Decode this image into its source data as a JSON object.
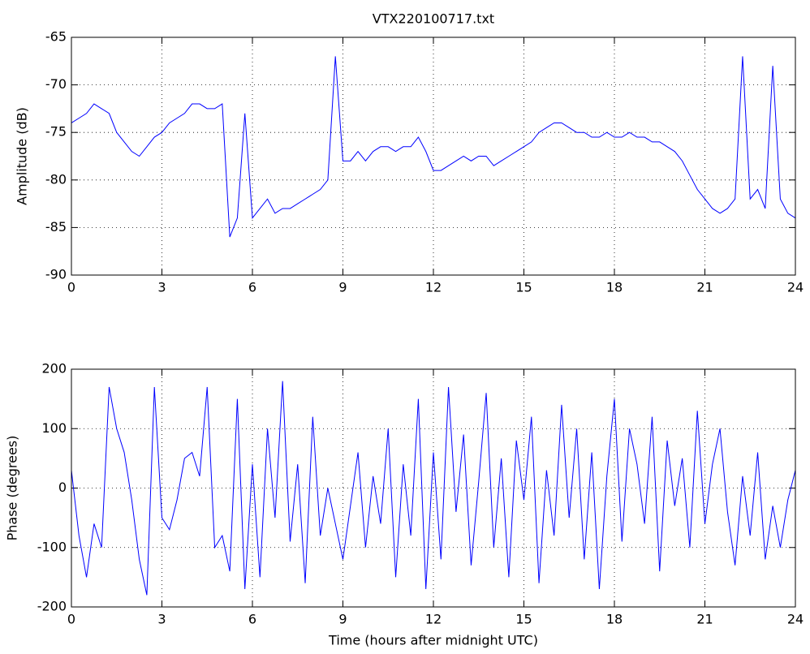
{
  "chart_data": [
    {
      "type": "line",
      "title": "VTX220100717.txt",
      "ylabel": "Amplitude (dB)",
      "x": [
        0,
        0.25,
        0.5,
        0.75,
        1,
        1.25,
        1.5,
        1.75,
        2,
        2.25,
        2.5,
        2.75,
        3,
        3.25,
        3.5,
        3.75,
        4,
        4.25,
        4.5,
        4.75,
        5,
        5.25,
        5.5,
        5.75,
        6,
        6.25,
        6.5,
        6.75,
        7,
        7.25,
        7.5,
        7.75,
        8,
        8.25,
        8.5,
        8.75,
        9,
        9.25,
        9.5,
        9.75,
        10,
        10.25,
        10.5,
        10.75,
        11,
        11.25,
        11.5,
        11.75,
        12,
        12.25,
        12.5,
        12.75,
        13,
        13.25,
        13.5,
        13.75,
        14,
        14.25,
        14.5,
        14.75,
        15,
        15.25,
        15.5,
        15.75,
        16,
        16.25,
        16.5,
        16.75,
        17,
        17.25,
        17.5,
        17.75,
        18,
        18.25,
        18.5,
        18.75,
        19,
        19.25,
        19.5,
        19.75,
        20,
        20.25,
        20.5,
        20.75,
        21,
        21.25,
        21.5,
        21.75,
        22,
        22.25,
        22.5,
        22.75,
        23,
        23.25,
        23.5,
        23.75,
        24
      ],
      "series": [
        {
          "color": "#0000ff",
          "values": [
            -74,
            -73.5,
            -73,
            -72,
            -72.5,
            -73,
            -75,
            -76,
            -77,
            -77.5,
            -76.5,
            -75.5,
            -75,
            -74,
            -73.5,
            -73,
            -72,
            -72,
            -72.5,
            -72.5,
            -72,
            -86,
            -84,
            -73,
            -84,
            -83,
            -82,
            -83.5,
            -83,
            -83,
            -82.5,
            -82,
            -81.5,
            -81,
            -80,
            -67,
            -78,
            -78,
            -77,
            -78,
            -77,
            -76.5,
            -76.5,
            -77,
            -76.5,
            -76.5,
            -75.5,
            -77,
            -79,
            -79,
            -78.5,
            -78,
            -77.5,
            -78,
            -77.5,
            -77.5,
            -78.5,
            -78,
            -77.5,
            -77,
            -76.5,
            -76,
            -75,
            -74.5,
            -74,
            -74,
            -74.5,
            -75,
            -75,
            -75.5,
            -75.5,
            -75,
            -75.5,
            -75.5,
            -75,
            -75.5,
            -75.5,
            -76,
            -76,
            -76.5,
            -77,
            -78,
            -79.5,
            -81,
            -82,
            -83,
            -83.5,
            -83,
            -82,
            -67,
            -82,
            -81,
            -83,
            -68,
            -82,
            -83.5,
            -84
          ]
        }
      ],
      "xlim": [
        0,
        24
      ],
      "xticks": [
        0,
        3,
        6,
        9,
        12,
        15,
        18,
        21,
        24
      ],
      "ylim": [
        -90,
        -65
      ],
      "yticks": [
        -90,
        -85,
        -80,
        -75,
        -70,
        -65
      ],
      "grid": true
    },
    {
      "type": "line",
      "xlabel": "Time (hours after midnight UTC)",
      "ylabel": "Phase (degrees)",
      "x": [
        0,
        0.25,
        0.5,
        0.75,
        1,
        1.25,
        1.5,
        1.75,
        2,
        2.25,
        2.5,
        2.75,
        3,
        3.25,
        3.5,
        3.75,
        4,
        4.25,
        4.5,
        4.75,
        5,
        5.25,
        5.5,
        5.75,
        6,
        6.25,
        6.5,
        6.75,
        7,
        7.25,
        7.5,
        7.75,
        8,
        8.25,
        8.5,
        8.75,
        9,
        9.25,
        9.5,
        9.75,
        10,
        10.25,
        10.5,
        10.75,
        11,
        11.25,
        11.5,
        11.75,
        12,
        12.25,
        12.5,
        12.75,
        13,
        13.25,
        13.5,
        13.75,
        14,
        14.25,
        14.5,
        14.75,
        15,
        15.25,
        15.5,
        15.75,
        16,
        16.25,
        16.5,
        16.75,
        17,
        17.25,
        17.5,
        17.75,
        18,
        18.25,
        18.5,
        18.75,
        19,
        19.25,
        19.5,
        19.75,
        20,
        20.25,
        20.5,
        20.75,
        21,
        21.25,
        21.5,
        21.75,
        22,
        22.25,
        22.5,
        22.75,
        23,
        23.25,
        23.5,
        23.75,
        24
      ],
      "series": [
        {
          "color": "#0000ff",
          "values": [
            30,
            -80,
            -150,
            -60,
            -100,
            170,
            100,
            60,
            -20,
            -120,
            -180,
            170,
            -50,
            -70,
            -20,
            50,
            60,
            20,
            170,
            -100,
            -80,
            -140,
            150,
            -170,
            40,
            -150,
            100,
            -50,
            180,
            -90,
            40,
            -160,
            120,
            -80,
            0,
            -60,
            -120,
            -30,
            60,
            -100,
            20,
            -60,
            100,
            -150,
            40,
            -80,
            150,
            -170,
            60,
            -120,
            170,
            -40,
            90,
            -130,
            10,
            160,
            -100,
            50,
            -150,
            80,
            -20,
            120,
            -160,
            30,
            -80,
            140,
            -50,
            100,
            -120,
            60,
            -170,
            20,
            150,
            -90,
            100,
            40,
            -60,
            120,
            -140,
            80,
            -30,
            50,
            -100,
            130,
            -60,
            40,
            100,
            -40,
            -130,
            20,
            -80,
            60,
            -120,
            -30,
            -100,
            -20,
            30
          ]
        }
      ],
      "xlim": [
        0,
        24
      ],
      "xticks": [
        0,
        3,
        6,
        9,
        12,
        15,
        18,
        21,
        24
      ],
      "ylim": [
        -200,
        200
      ],
      "yticks": [
        -200,
        -100,
        0,
        100,
        200
      ],
      "grid": true
    }
  ]
}
